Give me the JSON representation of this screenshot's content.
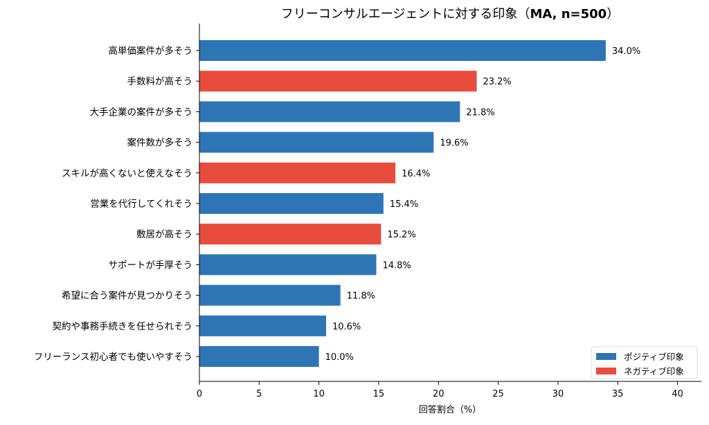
{
  "chart_data": {
    "type": "bar",
    "orientation": "horizontal",
    "title": "フリーコンサルエージェントに対する印象（",
    "title_bold": "MA, n=500",
    "title_end": "）",
    "xlabel": "回答割合（%）",
    "ylabel": "",
    "xlim": [
      0,
      42
    ],
    "xticks": [
      0,
      5,
      10,
      15,
      20,
      25,
      30,
      35,
      40
    ],
    "grid": false,
    "legend_position": "bottom-right",
    "colors": {
      "positive": "#2e75b6",
      "negative": "#e84c3d"
    },
    "legend": [
      {
        "label": "ポジティブ印象",
        "key": "positive"
      },
      {
        "label": "ネガティブ印象",
        "key": "negative"
      }
    ],
    "categories": [
      "高単価案件が多そう",
      "手数料が高そう",
      "大手企業の案件が多そう",
      "案件数が多そう",
      "スキルが高くないと使えなそう",
      "営業を代行してくれそう",
      "敷居が高そう",
      "サポートが手厚そう",
      "希望に合う案件が見つかりそう",
      "契約や事務手続きを任せられそう",
      "フリーランス初心者でも使いやすそう"
    ],
    "values": [
      34.0,
      23.2,
      21.8,
      19.6,
      16.4,
      15.4,
      15.2,
      14.8,
      11.8,
      10.6,
      10.0
    ],
    "value_labels": [
      "34.0%",
      "23.2%",
      "21.8%",
      "19.6%",
      "16.4%",
      "15.4%",
      "15.2%",
      "14.8%",
      "11.8%",
      "10.6%",
      "10.0%"
    ],
    "sentiment": [
      "positive",
      "negative",
      "positive",
      "positive",
      "negative",
      "positive",
      "negative",
      "positive",
      "positive",
      "positive",
      "positive"
    ]
  }
}
